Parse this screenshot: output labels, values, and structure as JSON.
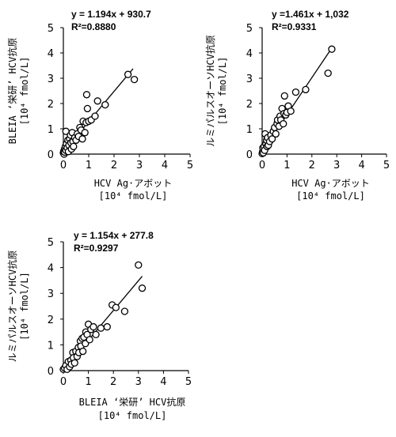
{
  "chart_data": [
    {
      "type": "scatter",
      "equation": "y = 1.194x + 930.7",
      "r2_label": "R²=0.8880",
      "trendline": {
        "slope": 1.194,
        "intercept": 0.0931
      },
      "xlabel": "HCV Ag·アボット",
      "xlabel_unit": "[10⁴ fmol/L]",
      "ylabel": "BLEIA ‘栄研’ HCV抗原",
      "ylabel_unit": "[10⁴ fmol/L]",
      "xlim": [
        0,
        5
      ],
      "ylim": [
        0,
        5
      ],
      "xticks": [
        "0",
        "1",
        "2",
        "3",
        "4",
        "5"
      ],
      "yticks": [
        "0",
        "1",
        "2",
        "3",
        "4",
        "5"
      ],
      "trend_x": [
        0.0,
        2.75
      ],
      "points": [
        [
          0.0,
          0.05
        ],
        [
          0.02,
          0.12
        ],
        [
          0.03,
          0.0
        ],
        [
          0.05,
          0.2
        ],
        [
          0.05,
          0.08
        ],
        [
          0.08,
          0.3
        ],
        [
          0.1,
          0.15
        ],
        [
          0.1,
          0.9
        ],
        [
          0.12,
          0.4
        ],
        [
          0.15,
          0.25
        ],
        [
          0.18,
          0.55
        ],
        [
          0.2,
          0.1
        ],
        [
          0.22,
          0.35
        ],
        [
          0.25,
          0.6
        ],
        [
          0.28,
          0.75
        ],
        [
          0.3,
          0.45
        ],
        [
          0.32,
          0.2
        ],
        [
          0.35,
          0.85
        ],
        [
          0.38,
          0.5
        ],
        [
          0.4,
          0.3
        ],
        [
          0.45,
          0.65
        ],
        [
          0.5,
          0.55
        ],
        [
          0.55,
          0.8
        ],
        [
          0.6,
          0.7
        ],
        [
          0.65,
          1.05
        ],
        [
          0.7,
          0.95
        ],
        [
          0.75,
          0.6
        ],
        [
          0.78,
          1.3
        ],
        [
          0.85,
          0.85
        ],
        [
          0.9,
          1.25
        ],
        [
          0.92,
          2.35
        ],
        [
          0.95,
          1.8
        ],
        [
          1.0,
          1.3
        ],
        [
          1.1,
          1.35
        ],
        [
          1.25,
          1.5
        ],
        [
          1.35,
          2.1
        ],
        [
          1.65,
          1.95
        ],
        [
          2.55,
          3.15
        ],
        [
          2.8,
          2.95
        ]
      ]
    },
    {
      "type": "scatter",
      "equation": "y =1.461x + 1,032",
      "r2_label": "R²=0.9331",
      "trendline": {
        "slope": 1.461,
        "intercept": 0.1032
      },
      "xlabel": "HCV Ag·アボット",
      "xlabel_unit": "[10⁴ fmol/L]",
      "ylabel": "ルミパルスオーソHCV抗原",
      "ylabel_unit": "[10⁴ fmol/L]",
      "xlim": [
        0,
        5
      ],
      "ylim": [
        0,
        5
      ],
      "xticks": [
        "0",
        "1",
        "2",
        "3",
        "4",
        "5"
      ],
      "yticks": [
        "0",
        "1",
        "2",
        "3",
        "4",
        "5"
      ],
      "trend_x": [
        0.0,
        2.75
      ],
      "points": [
        [
          0.0,
          0.02
        ],
        [
          0.02,
          0.1
        ],
        [
          0.03,
          0.25
        ],
        [
          0.05,
          0.05
        ],
        [
          0.08,
          0.3
        ],
        [
          0.1,
          0.15
        ],
        [
          0.12,
          0.8
        ],
        [
          0.15,
          0.4
        ],
        [
          0.18,
          0.55
        ],
        [
          0.2,
          0.3
        ],
        [
          0.22,
          0.65
        ],
        [
          0.25,
          0.35
        ],
        [
          0.3,
          0.5
        ],
        [
          0.35,
          0.75
        ],
        [
          0.4,
          0.6
        ],
        [
          0.45,
          0.9
        ],
        [
          0.5,
          1.05
        ],
        [
          0.55,
          0.8
        ],
        [
          0.6,
          1.2
        ],
        [
          0.62,
          1.35
        ],
        [
          0.68,
          1.1
        ],
        [
          0.72,
          1.5
        ],
        [
          0.75,
          1.35
        ],
        [
          0.8,
          1.8
        ],
        [
          0.85,
          1.2
        ],
        [
          0.88,
          1.6
        ],
        [
          0.9,
          2.3
        ],
        [
          0.95,
          1.55
        ],
        [
          1.0,
          1.65
        ],
        [
          1.05,
          1.9
        ],
        [
          1.15,
          1.7
        ],
        [
          1.35,
          2.45
        ],
        [
          1.75,
          2.55
        ],
        [
          2.65,
          3.2
        ],
        [
          2.8,
          4.15
        ]
      ]
    },
    {
      "type": "scatter",
      "equation": "y = 1.154x + 277.8",
      "r2_label": "R²=0.9297",
      "trendline": {
        "slope": 1.154,
        "intercept": 0.02778
      },
      "xlabel": "BLEIA ‘栄研’ HCV抗原",
      "xlabel_unit": "[10⁴ fmol/L]",
      "ylabel": "ルミパルスオーソHCV抗原",
      "ylabel_unit": "[10⁴ fmol/L]",
      "xlim": [
        0,
        5
      ],
      "ylim": [
        0,
        5
      ],
      "xticks": [
        "0",
        "1",
        "2",
        "3",
        "4",
        "5"
      ],
      "yticks": [
        "0",
        "1",
        "2",
        "3",
        "4",
        "5"
      ],
      "trend_x": [
        0.0,
        3.15
      ],
      "points": [
        [
          0.0,
          0.05
        ],
        [
          0.05,
          0.1
        ],
        [
          0.1,
          0.2
        ],
        [
          0.15,
          0.05
        ],
        [
          0.2,
          0.35
        ],
        [
          0.25,
          0.15
        ],
        [
          0.3,
          0.4
        ],
        [
          0.32,
          0.25
        ],
        [
          0.38,
          0.7
        ],
        [
          0.4,
          0.5
        ],
        [
          0.45,
          0.3
        ],
        [
          0.5,
          0.75
        ],
        [
          0.55,
          0.55
        ],
        [
          0.6,
          0.9
        ],
        [
          0.62,
          0.7
        ],
        [
          0.68,
          1.15
        ],
        [
          0.7,
          0.95
        ],
        [
          0.75,
          1.25
        ],
        [
          0.78,
          0.75
        ],
        [
          0.82,
          1.3
        ],
        [
          0.88,
          1.05
        ],
        [
          0.9,
          1.5
        ],
        [
          0.95,
          1.4
        ],
        [
          1.0,
          1.8
        ],
        [
          1.05,
          1.2
        ],
        [
          1.1,
          1.6
        ],
        [
          1.2,
          1.7
        ],
        [
          1.3,
          1.4
        ],
        [
          1.5,
          1.65
        ],
        [
          1.75,
          1.7
        ],
        [
          1.95,
          2.55
        ],
        [
          2.1,
          2.45
        ],
        [
          2.45,
          2.3
        ],
        [
          3.0,
          4.1
        ],
        [
          3.15,
          3.2
        ]
      ]
    }
  ]
}
